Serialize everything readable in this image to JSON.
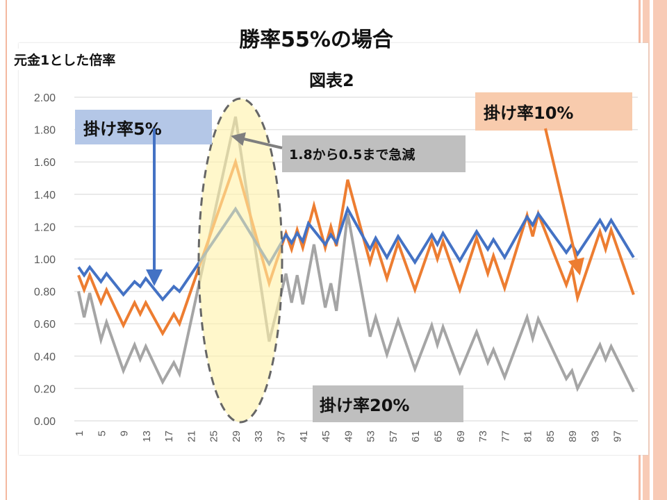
{
  "slide": {
    "title": "勝率55%の場合",
    "y_axis_note": "元金1とした倍率"
  },
  "annotations": {
    "rate5": "掛け率5%",
    "rate10": "掛け率10%",
    "rate20": "掛け率20%",
    "drop": "1.8から0.5まで急減"
  },
  "colors": {
    "blue": "#4472c4",
    "orange": "#ed7d31",
    "gray": "#a5a5a5",
    "highlight": "#fff2a8"
  },
  "chart_data": {
    "type": "line",
    "title": "図表2",
    "ylabel": "元金1とした倍率",
    "xlabel": "",
    "ylim": [
      0,
      2
    ],
    "xlim": [
      1,
      100
    ],
    "yticks": [
      "0.00",
      "0.20",
      "0.40",
      "0.60",
      "0.80",
      "1.00",
      "1.20",
      "1.40",
      "1.60",
      "1.80",
      "2.00"
    ],
    "xticks": [
      "1",
      "5",
      "9",
      "13",
      "17",
      "21",
      "25",
      "29",
      "33",
      "37",
      "41",
      "45",
      "49",
      "53",
      "57",
      "61",
      "65",
      "69",
      "73",
      "77",
      "81",
      "85",
      "89",
      "93",
      "97"
    ],
    "grid": true,
    "series": [
      {
        "name": "掛け率5%",
        "color": "#4472c4",
        "x": [
          1,
          2,
          3,
          5,
          6,
          9,
          11,
          12,
          13,
          16,
          18,
          19,
          29,
          35,
          38,
          39,
          40,
          41,
          42,
          45,
          46,
          47,
          49,
          53,
          54,
          56,
          58,
          61,
          64,
          65,
          66,
          69,
          72,
          74,
          75,
          77,
          81,
          82,
          83,
          88,
          89,
          90,
          94,
          95,
          96,
          100
        ],
        "y": [
          0.95,
          0.9,
          0.95,
          0.86,
          0.91,
          0.78,
          0.86,
          0.83,
          0.88,
          0.75,
          0.83,
          0.8,
          1.31,
          0.97,
          1.15,
          1.1,
          1.16,
          1.11,
          1.22,
          1.09,
          1.15,
          1.1,
          1.31,
          1.06,
          1.13,
          1.01,
          1.14,
          0.98,
          1.15,
          1.09,
          1.16,
          0.99,
          1.17,
          1.06,
          1.12,
          1.01,
          1.26,
          1.21,
          1.28,
          1.04,
          1.09,
          1.03,
          1.24,
          1.18,
          1.24,
          1.01
        ]
      },
      {
        "name": "掛け率10%",
        "color": "#ed7d31",
        "x": [
          1,
          2,
          3,
          5,
          6,
          9,
          11,
          12,
          13,
          16,
          18,
          19,
          29,
          35,
          38,
          39,
          40,
          41,
          43,
          45,
          46,
          47,
          49,
          53,
          54,
          56,
          58,
          61,
          64,
          65,
          66,
          69,
          72,
          74,
          75,
          77,
          81,
          82,
          83,
          88,
          89,
          90,
          94,
          95,
          96,
          100
        ],
        "y": [
          0.9,
          0.81,
          0.9,
          0.73,
          0.81,
          0.59,
          0.73,
          0.66,
          0.73,
          0.54,
          0.66,
          0.6,
          1.6,
          0.85,
          1.16,
          1.06,
          1.18,
          1.07,
          1.33,
          1.07,
          1.2,
          1.08,
          1.49,
          0.98,
          1.1,
          0.88,
          1.1,
          0.81,
          1.11,
          1.0,
          1.11,
          0.81,
          1.13,
          0.91,
          1.02,
          0.82,
          1.27,
          1.14,
          1.28,
          0.84,
          0.94,
          0.76,
          1.17,
          1.06,
          1.18,
          0.78
        ]
      },
      {
        "name": "掛け率20%",
        "color": "#a5a5a5",
        "x": [
          1,
          2,
          3,
          5,
          6,
          9,
          11,
          12,
          13,
          16,
          18,
          19,
          29,
          35,
          38,
          39,
          40,
          41,
          43,
          45,
          46,
          47,
          49,
          53,
          54,
          56,
          58,
          61,
          64,
          65,
          66,
          69,
          72,
          74,
          75,
          77,
          81,
          82,
          83,
          88,
          89,
          90,
          94,
          95,
          96,
          100
        ],
        "y": [
          0.8,
          0.64,
          0.79,
          0.5,
          0.61,
          0.31,
          0.47,
          0.38,
          0.46,
          0.24,
          0.36,
          0.29,
          1.88,
          0.49,
          0.91,
          0.73,
          0.9,
          0.72,
          1.09,
          0.7,
          0.85,
          0.68,
          1.28,
          0.52,
          0.64,
          0.41,
          0.62,
          0.32,
          0.59,
          0.47,
          0.58,
          0.3,
          0.55,
          0.36,
          0.44,
          0.27,
          0.64,
          0.51,
          0.63,
          0.26,
          0.31,
          0.2,
          0.47,
          0.38,
          0.46,
          0.18
        ]
      }
    ]
  }
}
